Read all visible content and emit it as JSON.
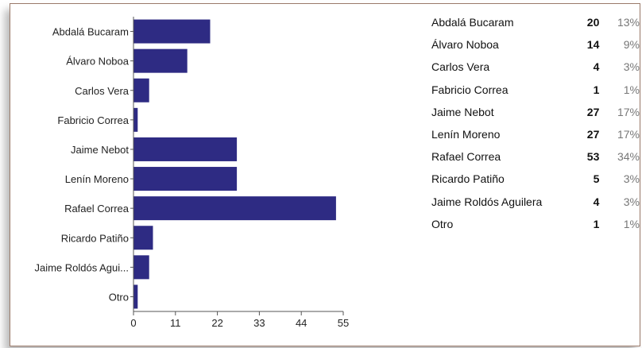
{
  "colors": {
    "bar": "#2e2b83",
    "axis": "#555555",
    "text": "#222222",
    "percent": "#777777"
  },
  "chart_data": {
    "type": "bar",
    "orientation": "horizontal",
    "categories": [
      "Abdalá Bucaram",
      "Álvaro Noboa",
      "Carlos Vera",
      "Fabricio Correa",
      "Jaime Nebot",
      "Lenín Moreno",
      "Rafael Correa",
      "Ricardo Patiño",
      "Jaime Roldós Aguilera",
      "Otro"
    ],
    "category_tick_labels": [
      "Abdalá Bucaram",
      "Álvaro Noboa",
      "Carlos Vera",
      "Fabricio Correa",
      "Jaime Nebot",
      "Lenín Moreno",
      "Rafael Correa",
      "Ricardo Patiño",
      "Jaime Roldós Agui...",
      "Otro"
    ],
    "values": [
      20,
      14,
      4,
      1,
      27,
      27,
      53,
      5,
      4,
      1
    ],
    "xlim": [
      0,
      55
    ],
    "xticks": [
      "0",
      "11",
      "22",
      "33",
      "44",
      "55"
    ],
    "grid": false,
    "title": "",
    "xlabel": "",
    "ylabel": ""
  },
  "summary_table": [
    {
      "name": "Abdalá Bucaram",
      "count": "20",
      "percent": "13%"
    },
    {
      "name": "Álvaro Noboa",
      "count": "14",
      "percent": "9%"
    },
    {
      "name": "Carlos Vera",
      "count": "4",
      "percent": "3%"
    },
    {
      "name": "Fabricio Correa",
      "count": "1",
      "percent": "1%"
    },
    {
      "name": "Jaime Nebot",
      "count": "27",
      "percent": "17%"
    },
    {
      "name": "Lenín Moreno",
      "count": "27",
      "percent": "17%"
    },
    {
      "name": "Rafael Correa",
      "count": "53",
      "percent": "34%"
    },
    {
      "name": "Ricardo Patiño",
      "count": "5",
      "percent": "3%"
    },
    {
      "name": "Jaime Roldós Aguilera",
      "count": "4",
      "percent": "3%"
    },
    {
      "name": "Otro",
      "count": "1",
      "percent": "1%"
    }
  ]
}
